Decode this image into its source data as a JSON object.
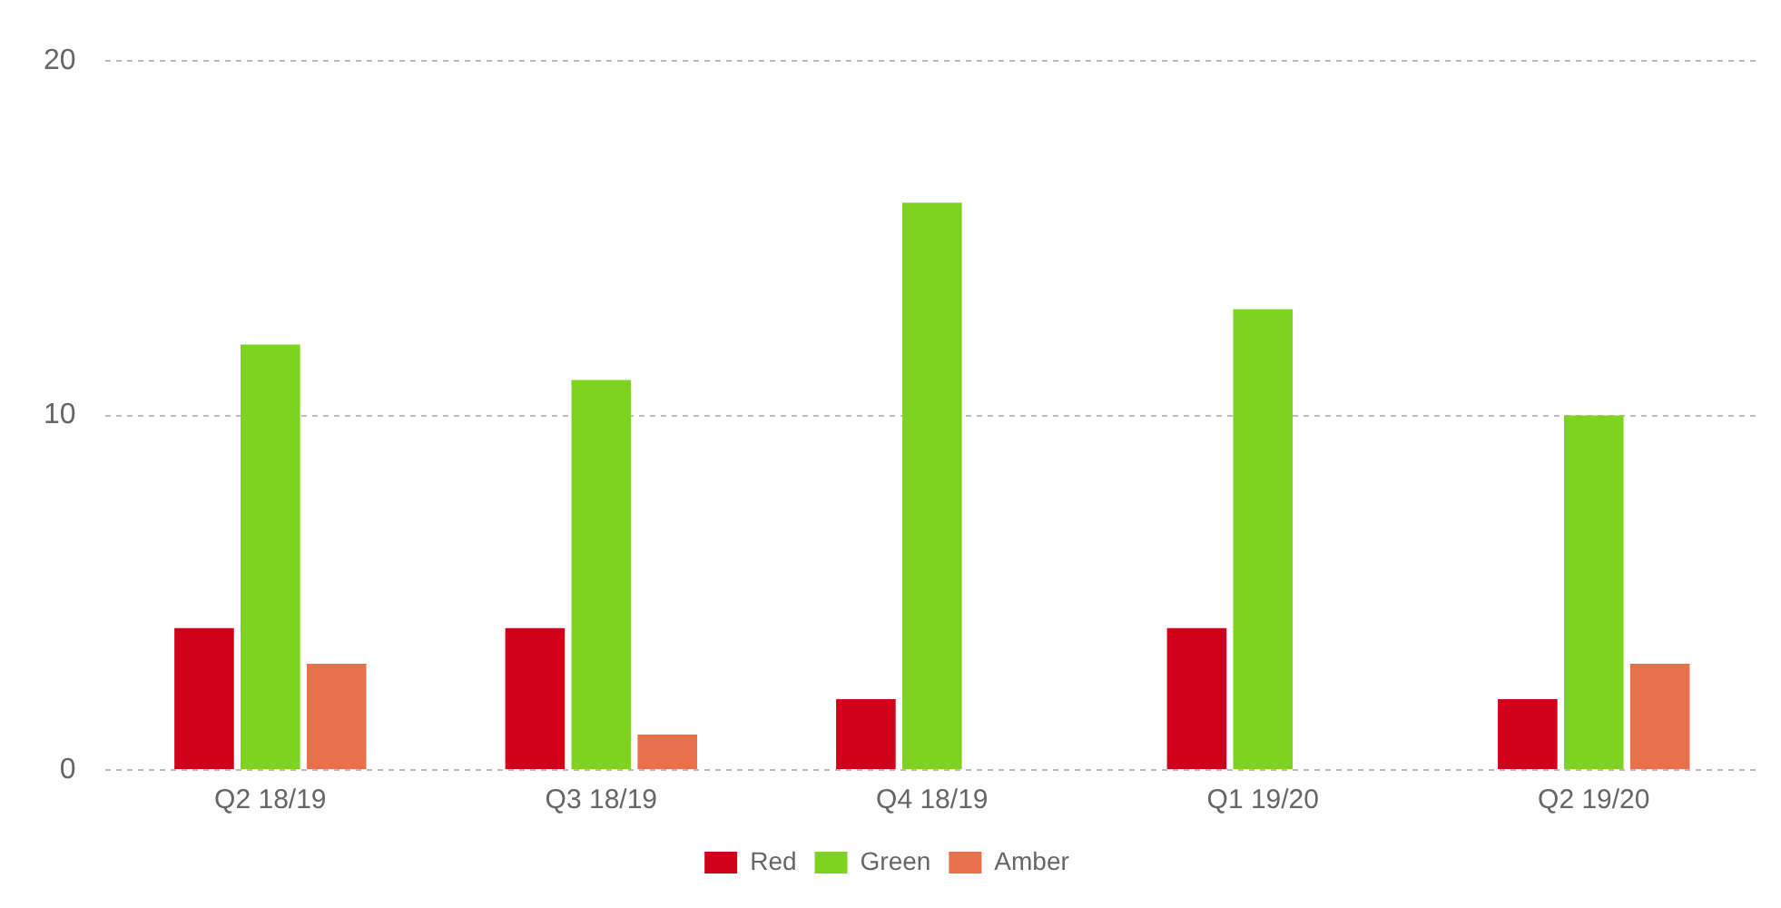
{
  "chart_data": {
    "type": "bar",
    "categories": [
      "Q2 18/19",
      "Q3 18/19",
      "Q4 18/19",
      "Q1 19/20",
      "Q2 19/20"
    ],
    "series": [
      {
        "name": "Red",
        "color": "#d0021b",
        "values": [
          4,
          4,
          2,
          4,
          2
        ]
      },
      {
        "name": "Green",
        "color": "#7ed321",
        "values": [
          12,
          11,
          16,
          13,
          10
        ]
      },
      {
        "name": "Amber",
        "color": "#e8704a",
        "values": [
          3,
          1,
          null,
          null,
          3
        ]
      }
    ],
    "ylim": [
      0,
      20
    ],
    "yticks": [
      0,
      10,
      20
    ],
    "grid": "y",
    "legend": "bottom"
  }
}
